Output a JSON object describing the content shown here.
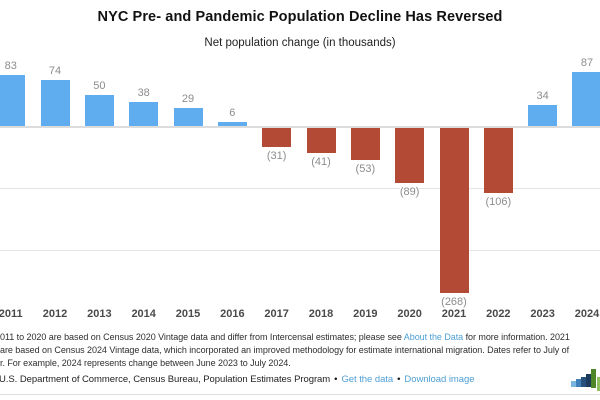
{
  "header": {
    "title": "NYC Pre- and Pandemic Population Decline Has Reversed",
    "subtitle": "Net population change (in thousands)"
  },
  "chart_data": {
    "type": "bar",
    "title": "NYC Pre- and Pandemic Population Decline Has Reversed",
    "subtitle": "Net population change (in thousands)",
    "categories": [
      "2011",
      "2012",
      "2013",
      "2014",
      "2015",
      "2016",
      "2017",
      "2018",
      "2019",
      "2020",
      "2021",
      "2022",
      "2023",
      "2024"
    ],
    "values": [
      83,
      74,
      50,
      38,
      29,
      6,
      -31,
      -41,
      -53,
      -89,
      -268,
      -106,
      34,
      87
    ],
    "value_labels": [
      "83",
      "74",
      "50",
      "38",
      "29",
      "6",
      "(31)",
      "(41)",
      "(53)",
      "(89)",
      "(268)",
      "(106)",
      "34",
      "87"
    ],
    "ylabel": "Net population change (in thousands)",
    "xlabel": "",
    "ylim": [
      -290,
      100
    ],
    "gridlines_at": [
      -100,
      -200
    ],
    "legend": "none",
    "positive_color": "#5fadef",
    "negative_color": "#b24a36",
    "value_label_color": "#8d8d8d",
    "axis_label_color": "#4a4a4a",
    "gridline_color": "#e4e4e4"
  },
  "notes": {
    "line1_prefix": "011 to 2020 are based on Census 2020 Vintage data and differ from Intercensal estimates; please see ",
    "line1_link": "About the Data",
    "line1_suffix": " for more information. 2021",
    "line2": "are based on Census 2024 Vintage data, which incorporated an improved methodology for estimate international migration. Dates refer to July of",
    "line3": "r. For example, 2024 represents change between June 2023 to July 2024."
  },
  "source": {
    "text": "U.S. Department of Commerce, Census Bureau, Population Estimates Program",
    "bullet": "•",
    "get_data_link": "Get the data",
    "download_link": "Download image"
  },
  "logo": {
    "icon": "bar-chart-logo",
    "bar_colors": [
      "#7ab5e0",
      "#3f80b8",
      "#27517c",
      "#1b3a5c",
      "#4d8727",
      "#8fc05e"
    ]
  }
}
